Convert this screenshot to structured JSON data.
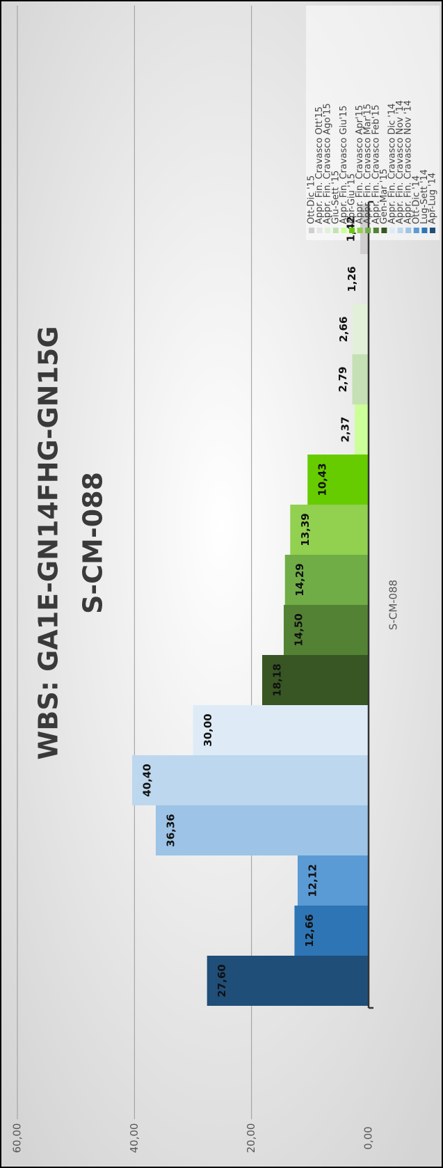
{
  "chart_data": {
    "type": "bar",
    "title": "WBS: GA1E-GN14FHG-GN15G",
    "subtitle": "S-CM-088",
    "categories": [
      "S-CM-088"
    ],
    "ylim": [
      0,
      60
    ],
    "yticks": [
      {
        "value": 0,
        "label": "0,00"
      },
      {
        "value": 20,
        "label": "20,00"
      },
      {
        "value": 40,
        "label": "40,00"
      },
      {
        "value": 60,
        "label": "60,00"
      }
    ],
    "grid": true,
    "series": [
      {
        "name": "Apr-Lug '14",
        "color": "#1f4e79",
        "values": [
          27.6
        ],
        "value_labels": [
          "27,60"
        ]
      },
      {
        "name": "Lug-Sett '14",
        "color": "#2e75b6",
        "values": [
          12.66
        ],
        "value_labels": [
          "12,66"
        ]
      },
      {
        "name": "Ott-Dic '14",
        "color": "#5b9bd5",
        "values": [
          12.12
        ],
        "value_labels": [
          "12,12"
        ]
      },
      {
        "name": "Appr. Fin. Cravasco Nov '14",
        "color": "#9dc3e6",
        "values": [
          36.36
        ],
        "value_labels": [
          "36,36"
        ]
      },
      {
        "name": "Appr. Fin. Cravasco Nov '14",
        "color": "#bdd7ee",
        "values": [
          40.4
        ],
        "value_labels": [
          "40,40"
        ]
      },
      {
        "name": "Appr. Fin. Cravasco Dic '14",
        "color": "#deebf7",
        "values": [
          30
        ],
        "value_labels": [
          "30,00"
        ]
      },
      {
        "name": "Gen-Mar '15",
        "color": "#375623",
        "values": [
          18.18
        ],
        "value_labels": [
          "18,18"
        ]
      },
      {
        "name": "Appr. Fin. Cravasco Feb'15",
        "color": "#548235",
        "values": [
          14.5
        ],
        "value_labels": [
          "14,50"
        ]
      },
      {
        "name": "Appr. Fin. Cravasco Mar'15",
        "color": "#70ad47",
        "values": [
          14.29
        ],
        "value_labels": [
          "14,29"
        ]
      },
      {
        "name": "Appr. Fin. Cravasco Apr'15",
        "color": "#92d050",
        "values": [
          13.39
        ],
        "value_labels": [
          "13,39"
        ]
      },
      {
        "name": "Apr-Giu '15",
        "color": "#66cc00",
        "values": [
          10.43
        ],
        "value_labels": [
          "10,43"
        ]
      },
      {
        "name": "Appr. Fin. Cravasco Giu'15",
        "color": "#ccff99",
        "values": [
          2.37
        ],
        "value_labels": [
          "2,37"
        ]
      },
      {
        "name": "Giu-Sett '15",
        "color": "#c5e0b4",
        "values": [
          2.79
        ],
        "value_labels": [
          "2,79"
        ]
      },
      {
        "name": "Appr. Fin. Cravasco Ago'15",
        "color": "#e2f0d9",
        "values": [
          2.66
        ],
        "value_labels": [
          "2,66"
        ]
      },
      {
        "name": "Appr. Fin. Cravasco Ott'15",
        "color": "#e7e6e6",
        "values": [
          1.26
        ],
        "value_labels": [
          "1,26"
        ]
      },
      {
        "name": "Ott-Dic '15",
        "color": "#d0cece",
        "values": [
          1.42
        ],
        "value_labels": [
          "1,42"
        ]
      }
    ]
  }
}
